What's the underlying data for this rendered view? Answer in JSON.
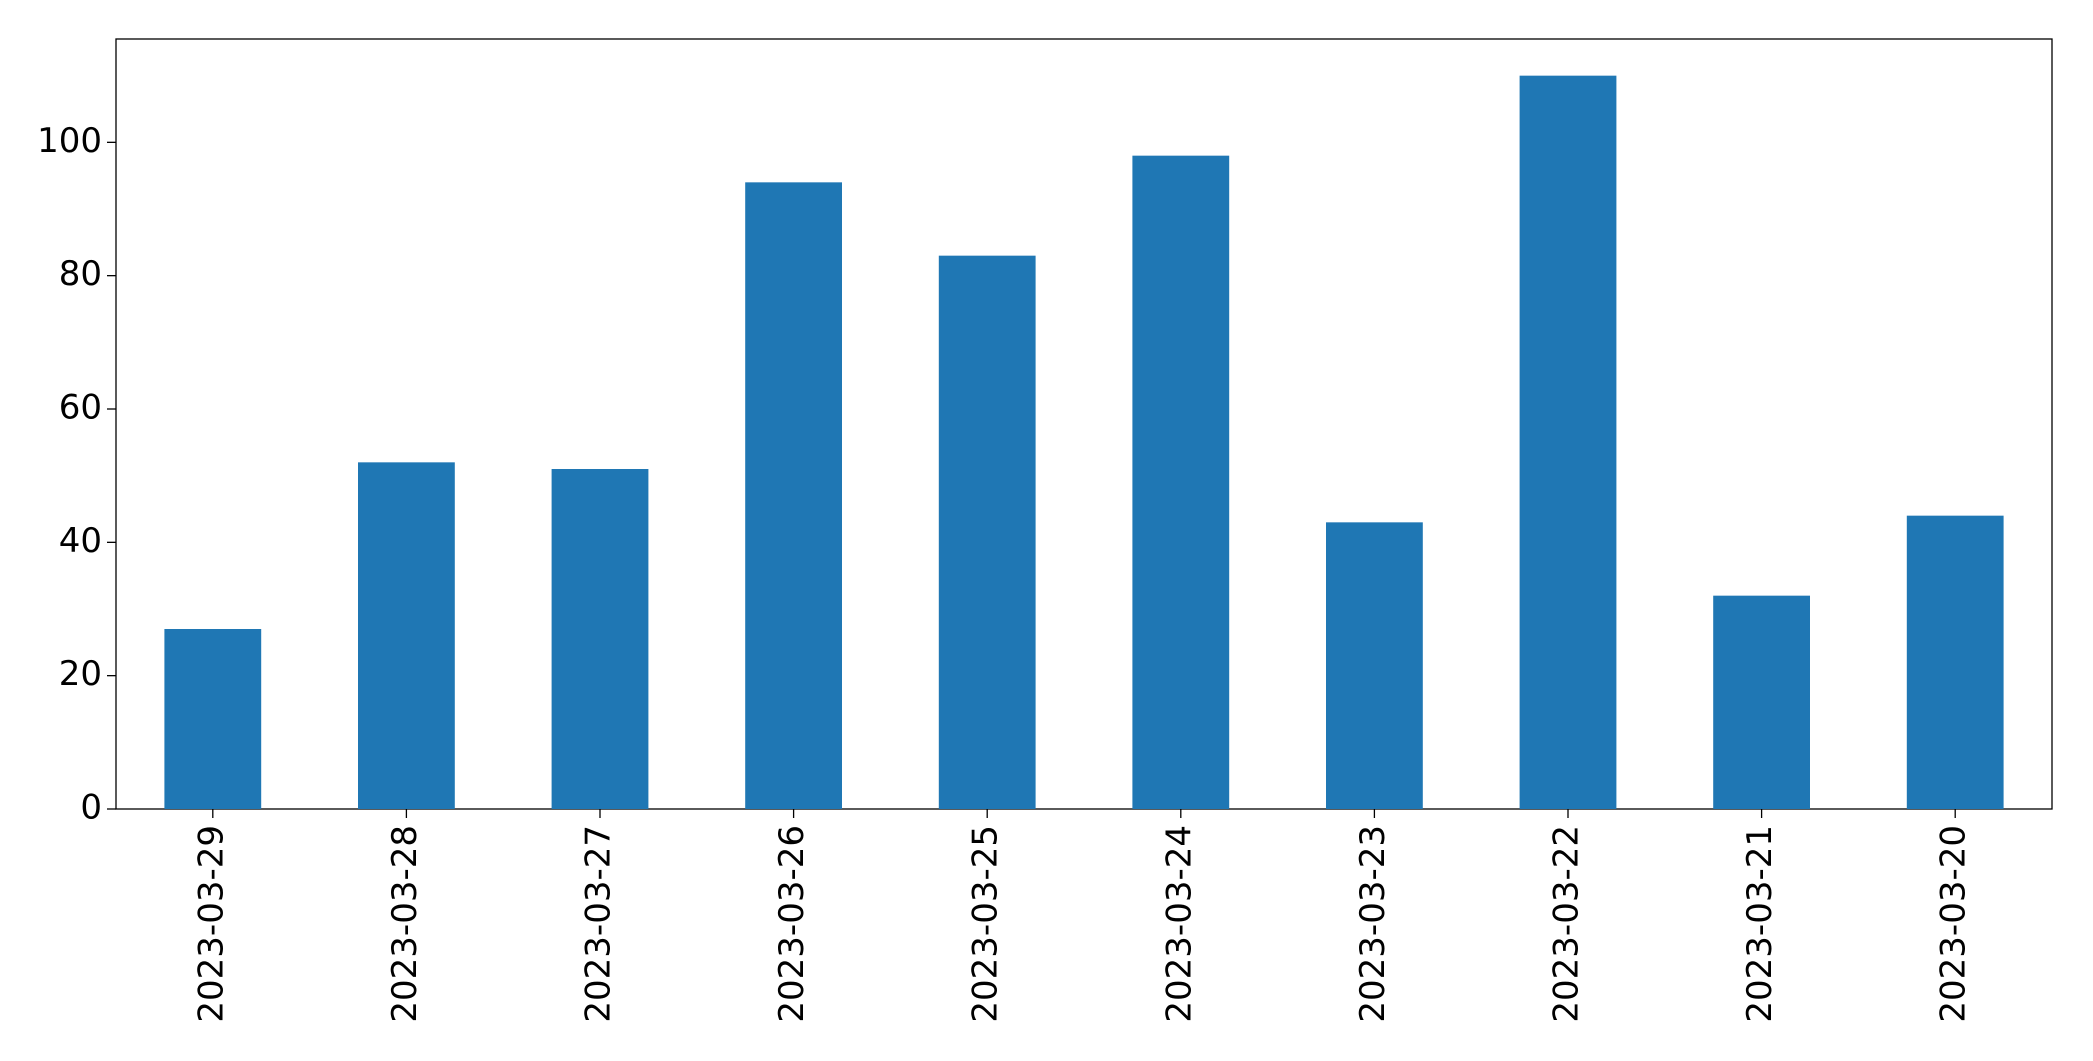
{
  "chart_data": {
    "type": "bar",
    "categories": [
      "2023-03-29",
      "2023-03-28",
      "2023-03-27",
      "2023-03-26",
      "2023-03-25",
      "2023-03-24",
      "2023-03-23",
      "2023-03-22",
      "2023-03-21",
      "2023-03-20"
    ],
    "values": [
      27,
      52,
      51,
      94,
      83,
      98,
      43,
      110,
      32,
      44
    ],
    "color": "#1f77b4",
    "ylim": [
      0,
      115.5
    ],
    "yticks": [
      0,
      20,
      40,
      60,
      80,
      100
    ],
    "grid": false
  }
}
